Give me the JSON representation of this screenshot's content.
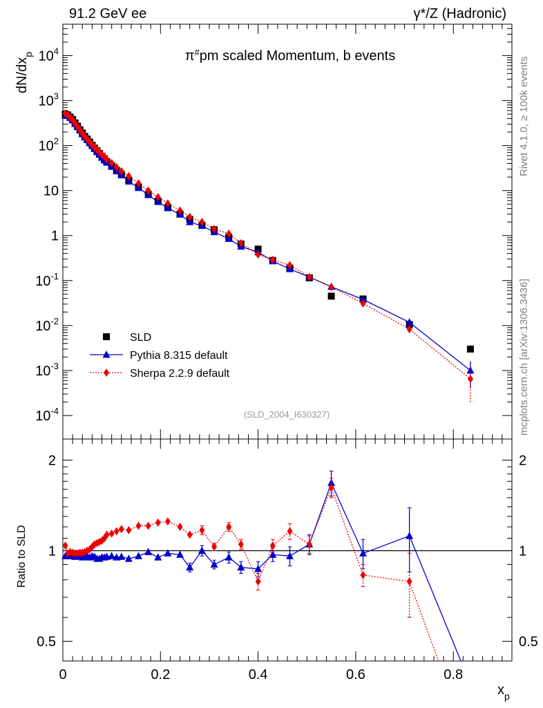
{
  "header": {
    "left": "91.2 GeV ee",
    "right": "γ*/Z (Hadronic)"
  },
  "side_labels": {
    "rivet": "Rivet 4.1.0, ≥ 100k events",
    "mcplots": "mcplots.cern.ch [arXiv:1306.3436]"
  },
  "chart_data": [
    {
      "type": "scatter",
      "title": "π#pm scaled Momentum, b events",
      "title_base": "π",
      "title_sup": "#",
      "title_rest": "pm scaled Momentum, b events",
      "ylabel": "dN/dx",
      "ylabel_sub": "p",
      "xlabel": "x",
      "xlabel_sub": "p",
      "yscale": "log",
      "xlim": [
        0,
        0.92
      ],
      "ylim": [
        3e-05,
        50000
      ],
      "watermark": "(SLD_2004_I630327)",
      "x_ticks": [
        "0",
        "0.2",
        "0.4",
        "0.6",
        "0.8"
      ],
      "y_ticks": [
        {
          "base": "10",
          "exp": "-4",
          "value": 0.0001
        },
        {
          "base": "10",
          "exp": "-3",
          "value": 0.001
        },
        {
          "base": "10",
          "exp": "-2",
          "value": 0.01
        },
        {
          "base": "10",
          "exp": "-1",
          "value": 0.1
        },
        {
          "base": "1",
          "exp": "",
          "value": 1
        },
        {
          "base": "10",
          "exp": "",
          "value": 10
        },
        {
          "base": "10",
          "exp": "2",
          "value": 100
        },
        {
          "base": "10",
          "exp": "3",
          "value": 1000
        },
        {
          "base": "10",
          "exp": "4",
          "value": 10000
        }
      ],
      "legend": [
        {
          "label": "SLD",
          "color": "#000000",
          "marker": "square"
        },
        {
          "label": "Pythia 8.315 default",
          "color": "#0000cc",
          "marker": "triangle"
        },
        {
          "label": "Sherpa 2.2.9 default",
          "color": "#ee0000",
          "marker": "diamond"
        }
      ],
      "series": [
        {
          "name": "SLD",
          "color": "#000000",
          "marker": "square",
          "x": [
            0.005,
            0.01,
            0.015,
            0.02,
            0.025,
            0.03,
            0.035,
            0.04,
            0.045,
            0.05,
            0.055,
            0.06,
            0.065,
            0.07,
            0.075,
            0.08,
            0.085,
            0.09,
            0.1,
            0.11,
            0.12,
            0.135,
            0.155,
            0.175,
            0.195,
            0.215,
            0.24,
            0.26,
            0.285,
            0.31,
            0.34,
            0.365,
            0.4,
            0.43,
            0.465,
            0.505,
            0.55,
            0.615,
            0.71,
            0.835
          ],
          "y": [
            500,
            480,
            430,
            380,
            320,
            270,
            225,
            190,
            160,
            140,
            120,
            102,
            88,
            77,
            67,
            58,
            51,
            44,
            36,
            28,
            23,
            17,
            12,
            8.2,
            5.8,
            4.2,
            3.0,
            2.3,
            1.7,
            1.35,
            0.92,
            0.65,
            0.5,
            0.28,
            0.19,
            0.115,
            0.045,
            0.039,
            0.0105,
            0.003
          ]
        },
        {
          "name": "Pythia 8.315 default",
          "color": "#0000cc",
          "marker": "triangle",
          "x": [
            0.005,
            0.01,
            0.015,
            0.02,
            0.025,
            0.03,
            0.035,
            0.04,
            0.045,
            0.05,
            0.055,
            0.06,
            0.065,
            0.07,
            0.075,
            0.08,
            0.085,
            0.09,
            0.1,
            0.11,
            0.12,
            0.135,
            0.155,
            0.175,
            0.195,
            0.215,
            0.24,
            0.26,
            0.285,
            0.31,
            0.34,
            0.365,
            0.4,
            0.43,
            0.465,
            0.505,
            0.55,
            0.615,
            0.71,
            0.835
          ],
          "y": [
            470,
            460,
            415,
            365,
            305,
            260,
            218,
            180,
            153,
            133,
            114,
            98,
            84,
            72,
            63,
            54,
            47,
            42,
            34,
            27,
            22,
            16,
            11.5,
            8.0,
            5.6,
            4.1,
            2.95,
            2.0,
            1.65,
            1.2,
            0.85,
            0.57,
            0.43,
            0.27,
            0.18,
            0.12,
            0.073,
            0.038,
            0.0118,
            0.001
          ],
          "yerr": [
            0,
            0,
            0,
            0,
            0,
            0,
            0,
            0,
            0,
            0,
            0,
            0,
            0,
            0,
            0,
            0,
            0,
            0,
            0,
            0,
            0,
            0,
            0,
            0,
            0,
            0,
            0,
            0,
            0,
            0,
            0,
            0,
            0,
            0,
            0,
            0,
            0,
            0.002,
            0.0013,
            0.0006
          ]
        },
        {
          "name": "Sherpa 2.2.9 default",
          "color": "#ee0000",
          "marker": "diamond",
          "x": [
            0.005,
            0.01,
            0.015,
            0.02,
            0.025,
            0.03,
            0.035,
            0.04,
            0.045,
            0.05,
            0.055,
            0.06,
            0.065,
            0.07,
            0.075,
            0.08,
            0.085,
            0.09,
            0.1,
            0.11,
            0.12,
            0.135,
            0.155,
            0.175,
            0.195,
            0.215,
            0.24,
            0.26,
            0.285,
            0.31,
            0.34,
            0.365,
            0.4,
            0.43,
            0.465,
            0.505,
            0.55,
            0.615,
            0.71,
            0.835
          ],
          "y": [
            520,
            470,
            425,
            375,
            315,
            265,
            222,
            187,
            158,
            140,
            121,
            105,
            92,
            82,
            72,
            63,
            57,
            50,
            41,
            33,
            27,
            21,
            14.5,
            10.0,
            7.2,
            5.2,
            3.6,
            2.6,
            2.0,
            1.4,
            1.1,
            0.68,
            0.38,
            0.29,
            0.22,
            0.12,
            0.072,
            0.031,
            0.0083,
            0.00065
          ],
          "yerr": [
            0,
            0,
            0,
            0,
            0,
            0,
            0,
            0,
            0,
            0,
            0,
            0,
            0,
            0,
            0,
            0,
            0,
            0,
            0,
            0,
            0,
            0,
            0,
            0,
            0,
            0,
            0,
            0,
            0,
            0,
            0,
            0,
            0,
            0,
            0,
            0,
            0,
            0.002,
            0.0015,
            0.00045
          ]
        }
      ]
    },
    {
      "type": "line",
      "ylabel": "Ratio to SLD",
      "yscale": "log",
      "xlim": [
        0,
        0.92
      ],
      "ylim": [
        0.43,
        2.35
      ],
      "reference_line": 1,
      "y_ticks": [
        "0.5",
        "1",
        "2"
      ],
      "x_ticks": [
        "0",
        "0.2",
        "0.4",
        "0.6",
        "0.8"
      ],
      "series": [
        {
          "name": "Pythia 8.315 default",
          "color": "#0000cc",
          "marker": "triangle",
          "x": [
            0.005,
            0.01,
            0.015,
            0.02,
            0.025,
            0.03,
            0.035,
            0.04,
            0.045,
            0.05,
            0.055,
            0.06,
            0.065,
            0.07,
            0.075,
            0.08,
            0.085,
            0.09,
            0.1,
            0.11,
            0.12,
            0.135,
            0.155,
            0.175,
            0.195,
            0.215,
            0.24,
            0.26,
            0.285,
            0.31,
            0.34,
            0.365,
            0.4,
            0.43,
            0.465,
            0.505,
            0.55,
            0.615,
            0.71,
            0.835
          ],
          "y": [
            0.96,
            0.96,
            0.965,
            0.96,
            0.955,
            0.96,
            0.97,
            0.95,
            0.955,
            0.96,
            0.95,
            0.96,
            0.955,
            0.94,
            0.94,
            0.95,
            0.95,
            0.955,
            0.96,
            0.95,
            0.955,
            0.94,
            0.96,
            0.99,
            0.95,
            0.98,
            0.97,
            0.88,
            1.0,
            0.9,
            0.95,
            0.88,
            0.87,
            0.97,
            0.96,
            1.05,
            1.68,
            0.98,
            1.12,
            0.36
          ],
          "yerr": [
            0,
            0,
            0,
            0,
            0,
            0,
            0,
            0,
            0,
            0,
            0,
            0,
            0,
            0,
            0,
            0,
            0,
            0,
            0,
            0,
            0,
            0,
            0,
            0,
            0,
            0,
            0,
            0.03,
            0.04,
            0.03,
            0.04,
            0.04,
            0.05,
            0.05,
            0.07,
            0.08,
            0.16,
            0.11,
            0.27,
            0.2
          ]
        },
        {
          "name": "Sherpa 2.2.9 default",
          "color": "#ee0000",
          "marker": "diamond",
          "x": [
            0.005,
            0.01,
            0.015,
            0.02,
            0.025,
            0.03,
            0.035,
            0.04,
            0.045,
            0.05,
            0.055,
            0.06,
            0.065,
            0.07,
            0.075,
            0.08,
            0.085,
            0.09,
            0.1,
            0.11,
            0.12,
            0.135,
            0.155,
            0.175,
            0.195,
            0.215,
            0.24,
            0.26,
            0.285,
            0.31,
            0.34,
            0.365,
            0.4,
            0.43,
            0.465,
            0.505,
            0.55,
            0.615,
            0.71,
            0.835
          ],
          "y": [
            1.04,
            0.98,
            0.99,
            0.985,
            0.98,
            0.98,
            0.985,
            0.985,
            0.99,
            1.0,
            1.01,
            1.03,
            1.05,
            1.06,
            1.07,
            1.08,
            1.1,
            1.13,
            1.14,
            1.16,
            1.18,
            1.17,
            1.21,
            1.21,
            1.24,
            1.25,
            1.2,
            1.13,
            1.17,
            1.03,
            1.2,
            1.05,
            0.79,
            1.04,
            1.16,
            1.05,
            1.62,
            0.83,
            0.79,
            0.22
          ],
          "yerr": [
            0,
            0,
            0,
            0,
            0,
            0,
            0,
            0,
            0,
            0,
            0,
            0,
            0,
            0,
            0,
            0,
            0,
            0,
            0,
            0,
            0,
            0,
            0,
            0,
            0,
            0,
            0,
            0,
            0.04,
            0.03,
            0.04,
            0.04,
            0.05,
            0.05,
            0.07,
            0.07,
            0.12,
            0.07,
            0.19,
            0.2
          ]
        }
      ]
    }
  ]
}
